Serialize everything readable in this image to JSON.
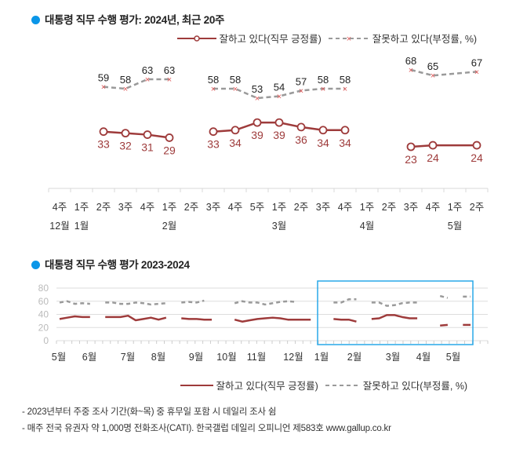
{
  "colors": {
    "accent_dot": "#0a96e8",
    "approve": "#9e3b3b",
    "disapprove": "#9a9a9a",
    "disapprove_marker": "#e05a5a",
    "highlight_box": "#29a8e8",
    "grid": "#dddddd",
    "axis_label": "#bbbbbb"
  },
  "chart_data": [
    {
      "type": "line",
      "title": "대통령 직무 수행 평가: 2024년, 최근 20주",
      "legend": {
        "placement": "top-right",
        "entries": [
          "잘하고 있다(직무 긍정률)",
          "잘못하고 있다(부정률, %)"
        ]
      },
      "categories": [
        "4주",
        "1주",
        "2주",
        "3주",
        "4주",
        "1주",
        "2주",
        "3주",
        "4주",
        "5주",
        "1주",
        "2주",
        "3주",
        "4주",
        "1주",
        "2주",
        "3주",
        "4주",
        "1주",
        "2주"
      ],
      "month_labels": [
        {
          "index": 0,
          "label": "12월"
        },
        {
          "index": 1,
          "label": "1월"
        },
        {
          "index": 5,
          "label": "2월"
        },
        {
          "index": 10,
          "label": "3월"
        },
        {
          "index": 14,
          "label": "4월"
        },
        {
          "index": 18,
          "label": "5월"
        }
      ],
      "series": [
        {
          "name": "잘하고 있다(직무 긍정률)",
          "values": [
            null,
            null,
            33,
            32,
            31,
            29,
            null,
            33,
            34,
            39,
            39,
            36,
            34,
            34,
            null,
            null,
            23,
            24,
            null,
            24
          ],
          "segments": [
            [
              2,
              5
            ],
            [
              7,
              13
            ],
            [
              16,
              19
            ]
          ]
        },
        {
          "name": "잘못하고 있다(부정률, %)",
          "values": [
            null,
            null,
            59,
            58,
            63,
            63,
            null,
            58,
            58,
            53,
            54,
            57,
            58,
            58,
            null,
            null,
            68,
            65,
            null,
            67
          ],
          "segments": [
            [
              2,
              5
            ],
            [
              7,
              13
            ],
            [
              16,
              19
            ]
          ]
        }
      ],
      "ylim": [
        0,
        80
      ],
      "grid": false
    },
    {
      "type": "line",
      "title": "대통령 직무 수행 평가 2023-2024",
      "yticks": [
        0,
        20,
        40,
        60,
        80
      ],
      "ylim": [
        0,
        80
      ],
      "grid": true,
      "month_labels": [
        "5월",
        "6월",
        "7월",
        "8월",
        "9월",
        "10월",
        "11월",
        "12월",
        "1월",
        "2월",
        "3월",
        "4월",
        "5월"
      ],
      "legend": {
        "placement": "bottom-right",
        "entries": [
          "잘하고 있다(직무 긍정률)",
          "잘못하고 있다(부정률, %)"
        ]
      },
      "highlight": "최근 20주 (1월~5월)",
      "series": [
        {
          "name": "잘하고 있다(직무 긍정률)",
          "values": [
            33,
            35,
            37,
            36,
            36,
            null,
            36,
            36,
            36,
            38,
            31,
            33,
            35,
            32,
            35,
            null,
            34,
            33,
            33,
            32,
            32,
            null,
            null,
            32,
            29,
            31,
            33,
            34,
            35,
            34,
            32,
            32,
            32,
            32,
            null,
            null,
            33,
            32,
            32,
            29,
            null,
            33,
            34,
            39,
            39,
            36,
            34,
            34,
            null,
            null,
            23,
            24,
            null,
            24,
            24
          ]
        },
        {
          "name": "잘못하고 있다(부정률, %)",
          "values": [
            58,
            60,
            56,
            57,
            56,
            null,
            58,
            58,
            56,
            56,
            58,
            57,
            55,
            56,
            57,
            null,
            58,
            59,
            58,
            61,
            null,
            null,
            null,
            57,
            60,
            58,
            58,
            55,
            57,
            59,
            60,
            59,
            null,
            null,
            null,
            null,
            58,
            58,
            63,
            63,
            null,
            58,
            58,
            53,
            54,
            57,
            58,
            58,
            null,
            null,
            68,
            65,
            null,
            67,
            67
          ]
        }
      ]
    }
  ],
  "notes": [
    "- 2023년부터 주중 조사 기간(화~목) 중 휴무일 포함 시 데일리 조사 쉼",
    "- 매주 전국 유권자 약 1,000명 전화조사(CATI). 한국갤럽 데일리 오피니언 제583호 www.gallup.co.kr"
  ]
}
